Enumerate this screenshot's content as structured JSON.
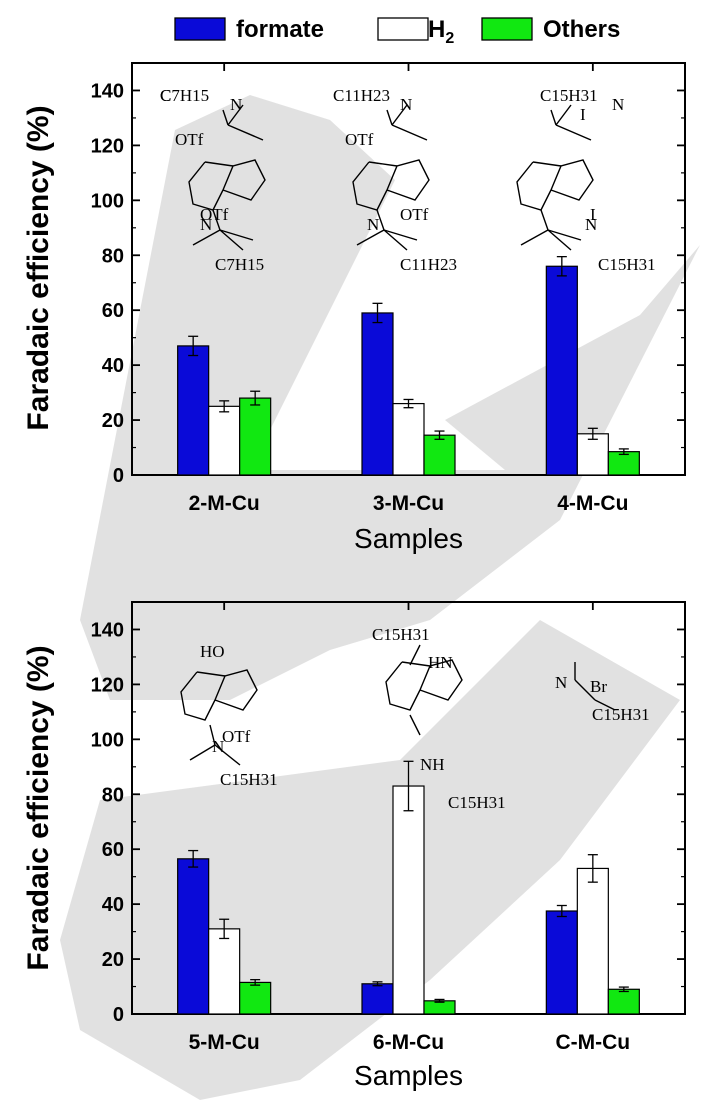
{
  "legend": [
    {
      "name": "formate",
      "color": "#0a0ad8"
    },
    {
      "name": "H2",
      "color": "#ffffff"
    },
    {
      "name": "Others",
      "color": "#11e811"
    }
  ],
  "watermark_color": "#d9d9d9",
  "chart_data": [
    {
      "type": "bar",
      "categories": [
        "2-M-Cu",
        "3-M-Cu",
        "4-M-Cu"
      ],
      "series": [
        {
          "name": "formate",
          "values": [
            47,
            59,
            76
          ],
          "errors": [
            3.5,
            3.5,
            3.5
          ]
        },
        {
          "name": "H2",
          "values": [
            25,
            26,
            15
          ],
          "errors": [
            2,
            1.5,
            2
          ]
        },
        {
          "name": "Others",
          "values": [
            28,
            14.5,
            8.5
          ],
          "errors": [
            2.5,
            1.5,
            1
          ]
        }
      ],
      "xlabel": "Samples",
      "ylabel": "Faradaic efficiency (%)",
      "ylim": [
        0,
        150
      ],
      "yticks": [
        0,
        20,
        40,
        60,
        80,
        100,
        120,
        140
      ],
      "grid": false,
      "legend_position": "top"
    },
    {
      "type": "bar",
      "categories": [
        "5-M-Cu",
        "6-M-Cu",
        "C-M-Cu"
      ],
      "series": [
        {
          "name": "formate",
          "values": [
            56.5,
            11,
            37.5
          ],
          "errors": [
            3,
            0.7,
            2
          ]
        },
        {
          "name": "H2",
          "values": [
            31,
            83,
            53
          ],
          "errors": [
            3.5,
            9,
            5
          ]
        },
        {
          "name": "Others",
          "values": [
            11.5,
            4.8,
            9
          ],
          "errors": [
            1,
            0.5,
            0.8
          ]
        }
      ],
      "xlabel": "Samples",
      "ylabel": "Faradaic efficiency (%)",
      "ylim": [
        0,
        150
      ],
      "yticks": [
        0,
        20,
        40,
        60,
        80,
        100,
        120,
        140
      ],
      "grid": false,
      "legend_position": "top"
    }
  ]
}
